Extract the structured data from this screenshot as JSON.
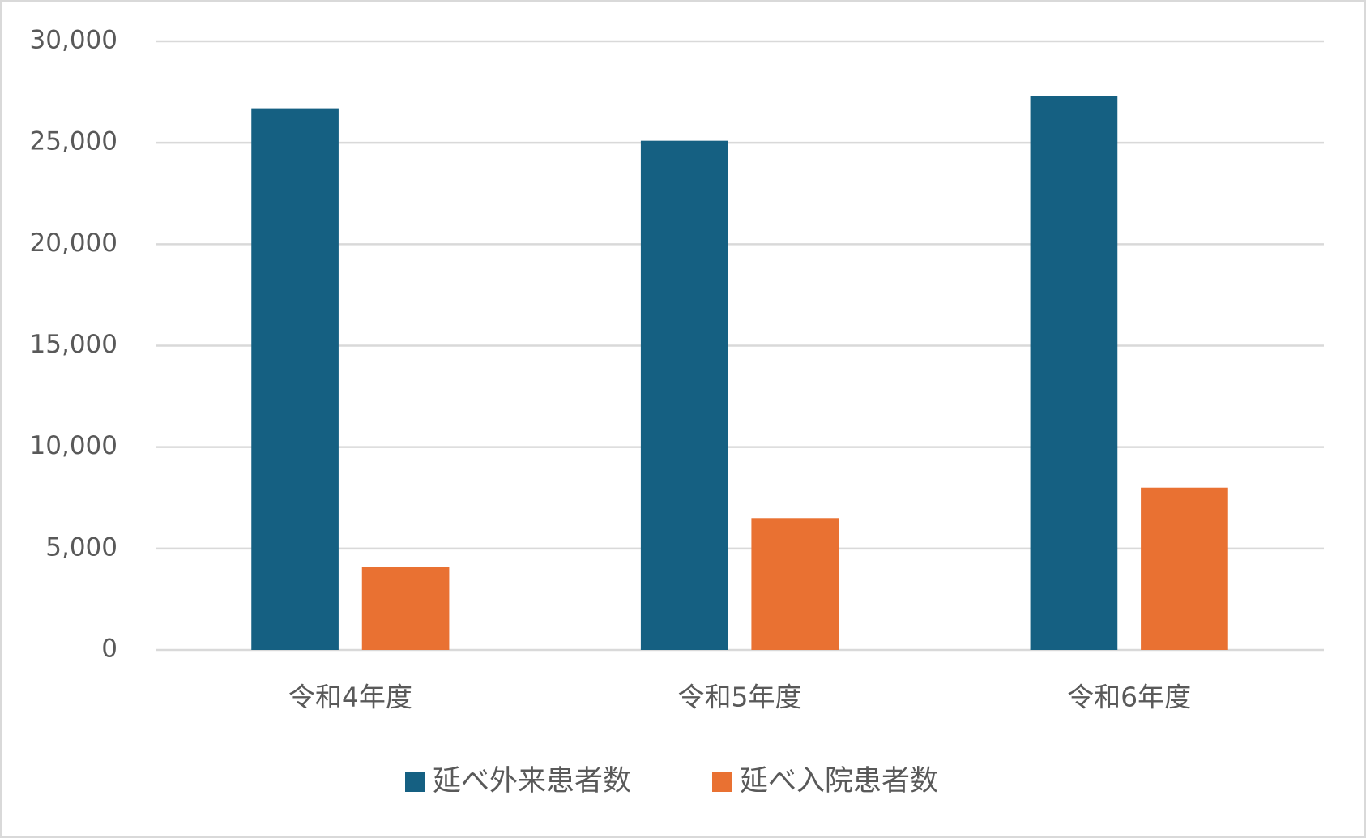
{
  "chart_data": {
    "type": "bar",
    "categories": [
      "令和4年度",
      "令和5年度",
      "令和6年度"
    ],
    "series": [
      {
        "name": "延べ外来患者数",
        "color": "#156082",
        "values": [
          26700,
          25100,
          27300
        ]
      },
      {
        "name": "延べ入院患者数",
        "color": "#e97132",
        "values": [
          4100,
          6500,
          8000
        ]
      }
    ],
    "ylim": [
      0,
      30000
    ],
    "yticks": [
      0,
      {
        "value": 5000,
        "label": "5,000"
      },
      {
        "value": 10000,
        "label": "10,000"
      },
      {
        "value": 15000,
        "label": "15,000"
      },
      {
        "value": 20000,
        "label": "20,000"
      },
      {
        "value": 25000,
        "label": "25,000"
      },
      {
        "value": 30000,
        "label": "30,000"
      }
    ],
    "grid": true,
    "legend": "bottom"
  }
}
